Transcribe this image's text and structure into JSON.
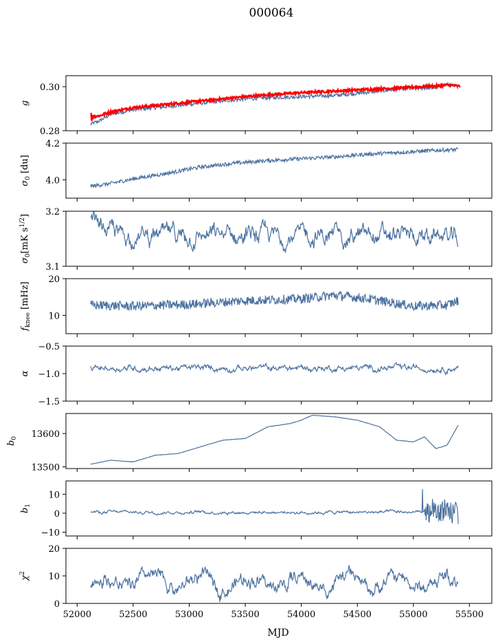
{
  "figure": {
    "title": "000064"
  },
  "chart_data": [
    {
      "type": "line",
      "ylabel": "g",
      "ylim": [
        0.28,
        0.305
      ],
      "yticks": [
        0.28,
        0.3
      ],
      "ytick_labels": [
        "0.28",
        "0.30"
      ],
      "series": [
        {
          "color": "#4c72a0",
          "x": [
            52120,
            52200,
            52300,
            52500,
            52700,
            53000,
            53300,
            53500,
            53700,
            54000,
            54300,
            54600,
            54900,
            55200,
            55300,
            55400
          ],
          "y": [
            0.283,
            0.2845,
            0.2875,
            0.2895,
            0.2905,
            0.292,
            0.2935,
            0.2945,
            0.295,
            0.2955,
            0.296,
            0.2975,
            0.299,
            0.2995,
            0.301,
            0.3
          ]
        },
        {
          "color": "#ff0000",
          "x": [
            52120,
            52200,
            52300,
            52500,
            52700,
            53000,
            53300,
            53500,
            53700,
            54000,
            54300,
            54600,
            54900,
            55200,
            55300,
            55420
          ],
          "y": [
            0.2862,
            0.2868,
            0.2885,
            0.2905,
            0.2915,
            0.293,
            0.2945,
            0.2955,
            0.2963,
            0.2973,
            0.298,
            0.2988,
            0.2995,
            0.3003,
            0.3008,
            0.3002
          ]
        }
      ]
    },
    {
      "type": "line",
      "ylabel": "σ0 [du]",
      "ylim": [
        3.9,
        4.2
      ],
      "yticks": [
        4.0,
        4.2
      ],
      "ytick_labels": [
        "4.0",
        "4.2"
      ],
      "series": [
        {
          "color": "#4c72a0",
          "x": [
            52120,
            52300,
            52500,
            52800,
            53100,
            53400,
            53700,
            54000,
            54300,
            54600,
            54900,
            55200,
            55400
          ],
          "y": [
            3.965,
            3.98,
            4.005,
            4.035,
            4.07,
            4.09,
            4.105,
            4.115,
            4.125,
            4.14,
            4.15,
            4.16,
            4.165
          ]
        }
      ]
    },
    {
      "type": "line",
      "ylabel": "σ0[mK s^1/2]",
      "ylim": [
        3.1,
        3.2
      ],
      "yticks": [
        3.1,
        3.2
      ],
      "ytick_labels": [
        "3.1",
        "3.2"
      ],
      "series": [
        {
          "color": "#4c72a0",
          "x": [
            52120,
            55400
          ],
          "y_mean": 3.155,
          "y_start": 3.185,
          "y_end": 3.142,
          "noise": 0.012
        }
      ]
    },
    {
      "type": "line",
      "ylabel": "fknee [mHz]",
      "ylim": [
        5,
        20
      ],
      "yticks": [
        10,
        20
      ],
      "ytick_labels": [
        "10",
        "20"
      ],
      "series": [
        {
          "color": "#4c72a0",
          "x": [
            52120,
            52500,
            53000,
            53500,
            54000,
            54300,
            54600,
            55000,
            55300,
            55400
          ],
          "y": [
            12.8,
            12.5,
            13.0,
            14.0,
            14.5,
            15.5,
            14.5,
            12.5,
            12.8,
            14.0
          ]
        }
      ]
    },
    {
      "type": "line",
      "ylabel": "α",
      "ylim": [
        -1.5,
        -0.5
      ],
      "yticks": [
        -1.5,
        -1.0,
        -0.5
      ],
      "ytick_labels": [
        "−1.5",
        "−1.0",
        "−0.5"
      ],
      "series": [
        {
          "color": "#4c72a0",
          "x": [
            52120,
            55400
          ],
          "y_mean": -0.9,
          "noise": 0.04
        }
      ]
    },
    {
      "type": "line",
      "ylabel": "b0",
      "ylim": [
        13495,
        13660
      ],
      "yticks": [
        13500,
        13600
      ],
      "ytick_labels": [
        "13500",
        "13600"
      ],
      "series": [
        {
          "color": "#4c72a0",
          "x": [
            52120,
            52300,
            52500,
            52700,
            52900,
            53100,
            53300,
            53500,
            53700,
            53900,
            54000,
            54100,
            54300,
            54500,
            54700,
            54850,
            55000,
            55100,
            55200,
            55300,
            55400
          ],
          "y": [
            13508,
            13520,
            13515,
            13535,
            13540,
            13560,
            13580,
            13585,
            13620,
            13630,
            13640,
            13655,
            13650,
            13640,
            13620,
            13580,
            13575,
            13590,
            13555,
            13565,
            13625
          ]
        }
      ]
    },
    {
      "type": "line",
      "ylabel": "b1",
      "ylim": [
        -12,
        17
      ],
      "yticks": [
        -10,
        0,
        10
      ],
      "ytick_labels": [
        "−10",
        "0",
        "10"
      ],
      "series": [
        {
          "color": "#4c72a0",
          "x": [
            52120,
            55400
          ],
          "y_mean": 0.5,
          "noise": 0.6
        }
      ]
    },
    {
      "type": "line",
      "ylabel": "χ2",
      "xlabel": "MJD",
      "ylim": [
        0,
        20
      ],
      "yticks": [
        0,
        10,
        20
      ],
      "ytick_labels": [
        "0",
        "10",
        "20"
      ],
      "xlim": [
        51900,
        55700
      ],
      "xticks": [
        52000,
        52500,
        53000,
        53500,
        54000,
        54500,
        55000,
        55500
      ],
      "xtick_labels": [
        "52000",
        "52500",
        "53000",
        "53500",
        "54000",
        "54500",
        "55000",
        "55500"
      ],
      "series": [
        {
          "color": "#4c72a0",
          "x": [
            52120,
            55400
          ],
          "y_mean": 7.5,
          "noise": 2.0
        }
      ]
    }
  ]
}
